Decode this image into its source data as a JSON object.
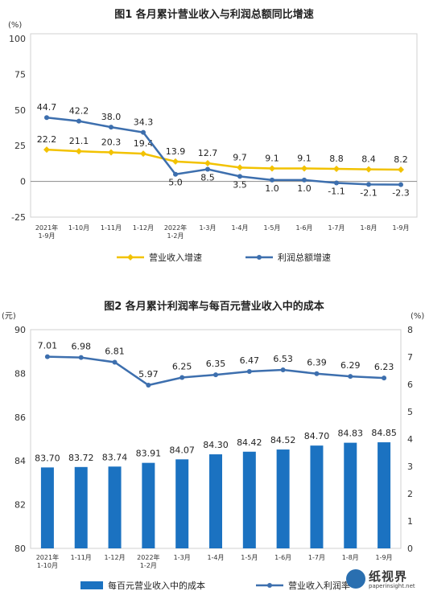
{
  "chart_data": [
    {
      "type": "line",
      "title": "图1  各月累计营业收入与利润总额同比增速",
      "unit_label": "(%)",
      "categories": [
        "2021年\n1-9月",
        "1-10月",
        "1-11月",
        "1-12月",
        "2022年\n1-2月",
        "1-3月",
        "1-4月",
        "1-5月",
        "1-6月",
        "1-7月",
        "1-8月",
        "1-9月"
      ],
      "ylim": [
        -25,
        100
      ],
      "yticks": [
        -25,
        0,
        25,
        50,
        75,
        100
      ],
      "series": [
        {
          "name": "营业收入增速",
          "color": "#f2c200",
          "marker": "diamond",
          "values": [
            22.2,
            21.1,
            20.3,
            19.4,
            13.9,
            12.7,
            9.7,
            9.1,
            9.1,
            8.8,
            8.4,
            8.2
          ]
        },
        {
          "name": "利润总额增速",
          "color": "#3d6fae",
          "marker": "circle",
          "values": [
            44.7,
            42.2,
            38.0,
            34.3,
            5.0,
            8.5,
            3.5,
            1.0,
            1.0,
            -1.1,
            -2.1,
            -2.3
          ]
        }
      ],
      "legend": "bottom"
    },
    {
      "type": "bar+line",
      "title": "图2  各月累计利润率与每百元营业收入中的成本",
      "left_unit_label": "(元)",
      "right_unit_label": "(%)",
      "categories": [
        "2021年\n1-10月",
        "1-11月",
        "1-12月",
        "2022年\n1-2月",
        "1-3月",
        "1-4月",
        "1-5月",
        "1-6月",
        "1-7月",
        "1-8月",
        "1-9月"
      ],
      "ylim_left": [
        80,
        90
      ],
      "yticks_left": [
        80,
        82,
        84,
        86,
        88,
        90
      ],
      "ylim_right": [
        0,
        8
      ],
      "yticks_right": [
        0,
        1,
        2,
        3,
        4,
        5,
        6,
        7,
        8
      ],
      "bar_series": {
        "name": "每百元营业收入中的成本",
        "color": "#1b72c1",
        "values": [
          83.7,
          83.72,
          83.74,
          83.91,
          84.07,
          84.3,
          84.42,
          84.52,
          84.7,
          84.83,
          84.85
        ],
        "labels": [
          "83.70",
          "83.72",
          "83.74",
          "83.91",
          "84.07",
          "84.30",
          "84.42",
          "84.52",
          "84.70",
          "84.83",
          "84.85"
        ]
      },
      "line_series": {
        "name": "营业收入利润率",
        "color": "#3d6fae",
        "marker": "circle",
        "values": [
          7.01,
          6.98,
          6.81,
          5.97,
          6.25,
          6.35,
          6.47,
          6.53,
          6.39,
          6.29,
          6.23
        ],
        "labels": [
          "7.01",
          "6.98",
          "6.81",
          "5.97",
          "6.25",
          "6.35",
          "6.47",
          "6.53",
          "6.39",
          "6.29",
          "6.23"
        ]
      },
      "legend": "bottom"
    }
  ],
  "watermark": {
    "text": "纸视界",
    "sub": "paperinsight.net"
  }
}
